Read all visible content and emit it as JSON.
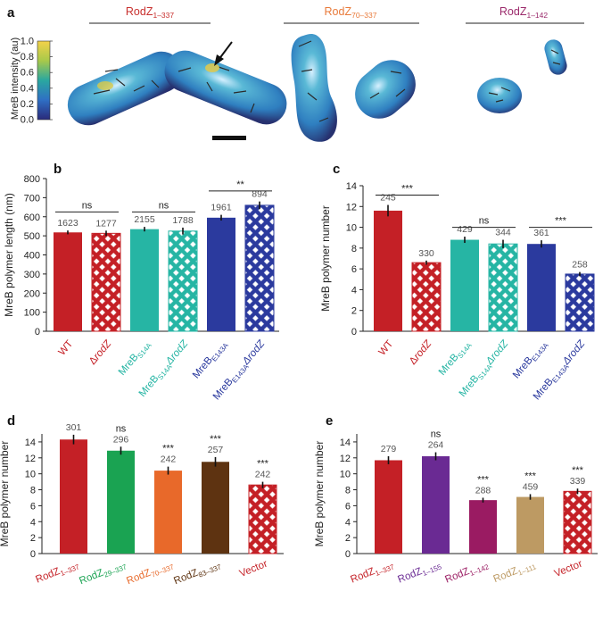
{
  "panels": {
    "a": "a",
    "b": "b",
    "c": "c",
    "d": "d",
    "e": "e"
  },
  "panel_a": {
    "groups": [
      {
        "label": "RodZ",
        "sub": "1–337",
        "color": "#c8302e"
      },
      {
        "label": "RodZ",
        "sub": "70–337",
        "color": "#e87a3a"
      },
      {
        "label": "RodZ",
        "sub": "1–142",
        "color": "#9b2a6b"
      }
    ],
    "colorbar": {
      "label": "MreB intensity (au)",
      "ticks": [
        "1.0",
        "0.8",
        "0.6",
        "0.4",
        "0.2",
        "0.0"
      ]
    },
    "colors": {
      "cell_low": "#3c4fb8",
      "cell_mid": "#2fa0c8",
      "cell_high": "#e8c640"
    }
  },
  "colors": {
    "red": "#c42026",
    "teal": "#26b5a4",
    "blue": "#2b3a9e",
    "green": "#1aa352",
    "orange": "#e8692a",
    "brown": "#5e3311",
    "purple": "#6a2a93",
    "magenta": "#9a1b62",
    "tan": "#bd9a63",
    "err": "#111111"
  },
  "chart_data": [
    {
      "type": "bar",
      "panel": "b",
      "ylabel": "MreB polymer length (nm)",
      "ylim": [
        0,
        800
      ],
      "yticks": [
        "0",
        "100",
        "200",
        "300",
        "400",
        "500",
        "600",
        "700",
        "800"
      ],
      "categories": [
        {
          "main": "WT",
          "sub": "",
          "tail": ""
        },
        {
          "main": "Δ",
          "sub": "",
          "tail": "rodZ"
        },
        {
          "main": "MreB",
          "sub": "S14A",
          "tail": ""
        },
        {
          "main": "MreB",
          "sub": "S14A",
          "tail": "ΔrodZ"
        },
        {
          "main": "MreB",
          "sub": "E143A",
          "tail": ""
        },
        {
          "main": "MreB",
          "sub": "E143A",
          "tail": "ΔrodZ"
        }
      ],
      "values": [
        518,
        513,
        535,
        525,
        595,
        660
      ],
      "errors": [
        10,
        14,
        12,
        18,
        15,
        20
      ],
      "n": [
        "1623",
        "1277",
        "2155",
        "1788",
        "1961",
        "894"
      ],
      "colors": [
        "red",
        "red",
        "teal",
        "teal",
        "blue",
        "blue"
      ],
      "hatched": [
        false,
        true,
        false,
        true,
        false,
        true
      ],
      "comparisons": [
        {
          "from": 0,
          "to": 1,
          "label": "ns",
          "level": 625
        },
        {
          "from": 2,
          "to": 3,
          "label": "ns",
          "level": 625
        },
        {
          "from": 4,
          "to": 5,
          "label": "**",
          "level": 735
        }
      ]
    },
    {
      "type": "bar",
      "panel": "c",
      "ylabel": "MreB polymer number",
      "ylim": [
        0,
        14
      ],
      "yticks": [
        "0",
        "2",
        "4",
        "6",
        "8",
        "10",
        "12",
        "14"
      ],
      "categories": [
        {
          "main": "WT",
          "sub": "",
          "tail": ""
        },
        {
          "main": "Δ",
          "sub": "",
          "tail": "rodZ"
        },
        {
          "main": "MreB",
          "sub": "S14A",
          "tail": ""
        },
        {
          "main": "MreB",
          "sub": "S14A",
          "tail": "ΔrodZ"
        },
        {
          "main": "MreB",
          "sub": "E143A",
          "tail": ""
        },
        {
          "main": "MreB",
          "sub": "E143A",
          "tail": "ΔrodZ"
        }
      ],
      "values": [
        11.6,
        6.6,
        8.8,
        8.4,
        8.4,
        5.5
      ],
      "errors": [
        0.55,
        0.2,
        0.3,
        0.4,
        0.35,
        0.2
      ],
      "n": [
        "245",
        "330",
        "429",
        "344",
        "361",
        "258"
      ],
      "colors": [
        "red",
        "red",
        "teal",
        "teal",
        "blue",
        "blue"
      ],
      "hatched": [
        false,
        true,
        false,
        true,
        false,
        true
      ],
      "comparisons": [
        {
          "from": 0,
          "to": 1,
          "label": "***",
          "level": 13.1
        },
        {
          "from": 2,
          "to": 3,
          "label": "ns",
          "level": 10.0
        },
        {
          "from": 4,
          "to": 5,
          "label": "***",
          "level": 10.0
        }
      ]
    },
    {
      "type": "bar",
      "panel": "d",
      "ylabel": "MreB polymer number",
      "ylim": [
        0,
        15
      ],
      "yticks": [
        "0",
        "2",
        "4",
        "6",
        "8",
        "10",
        "12",
        "14"
      ],
      "categories": [
        {
          "main": "RodZ",
          "sub": "1–337",
          "tail": ""
        },
        {
          "main": "RodZ",
          "sub": "29–337",
          "tail": ""
        },
        {
          "main": "RodZ",
          "sub": "70–337",
          "tail": ""
        },
        {
          "main": "RodZ",
          "sub": "83–337",
          "tail": ""
        },
        {
          "main": "Vector",
          "sub": "",
          "tail": ""
        }
      ],
      "values": [
        14.3,
        12.9,
        10.4,
        11.5,
        8.6
      ],
      "errors": [
        0.6,
        0.5,
        0.5,
        0.6,
        0.4
      ],
      "n": [
        "301",
        "296",
        "242",
        "257",
        "242"
      ],
      "sig": [
        "",
        "ns",
        "***",
        "***",
        "***"
      ],
      "colors": [
        "red",
        "green",
        "orange",
        "brown",
        "red"
      ],
      "hatched": [
        false,
        false,
        false,
        false,
        true
      ]
    },
    {
      "type": "bar",
      "panel": "e",
      "ylabel": "MreB polymer number",
      "ylim": [
        0,
        15
      ],
      "yticks": [
        "0",
        "2",
        "4",
        "6",
        "8",
        "10",
        "12",
        "14"
      ],
      "categories": [
        {
          "main": "RodZ",
          "sub": "1–337",
          "tail": ""
        },
        {
          "main": "RodZ",
          "sub": "1–155",
          "tail": ""
        },
        {
          "main": "RodZ",
          "sub": "1–142",
          "tail": ""
        },
        {
          "main": "RodZ",
          "sub": "1–111",
          "tail": ""
        },
        {
          "main": "Vector",
          "sub": "",
          "tail": ""
        }
      ],
      "values": [
        11.7,
        12.2,
        6.7,
        7.1,
        7.8
      ],
      "errors": [
        0.5,
        0.5,
        0.3,
        0.35,
        0.35
      ],
      "n": [
        "279",
        "264",
        "288",
        "459",
        "339"
      ],
      "sig": [
        "",
        "ns",
        "***",
        "***",
        "***"
      ],
      "colors": [
        "red",
        "purple",
        "magenta",
        "tan",
        "red"
      ],
      "hatched": [
        false,
        false,
        false,
        false,
        true
      ]
    }
  ]
}
